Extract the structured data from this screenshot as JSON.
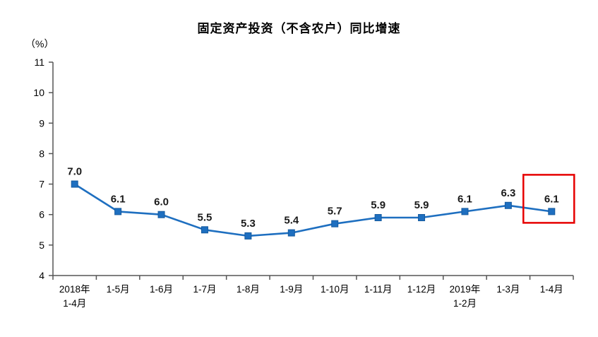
{
  "chart_data": {
    "type": "line",
    "title": "固定资产投资（不含农户）同比增速",
    "ylabel": "（%）",
    "categories": [
      "2018年\n1-4月",
      "1-5月",
      "1-6月",
      "1-7月",
      "1-8月",
      "1-9月",
      "1-10月",
      "1-11月",
      "1-12月",
      "2019年\n1-2月",
      "1-3月",
      "1-4月"
    ],
    "values": [
      7.0,
      6.1,
      6.0,
      5.5,
      5.3,
      5.4,
      5.7,
      5.9,
      5.9,
      6.1,
      6.3,
      6.1
    ],
    "labels": [
      "7.0",
      "6.1",
      "6.0",
      "5.5",
      "5.3",
      "5.4",
      "5.7",
      "5.9",
      "5.9",
      "6.1",
      "6.3",
      "6.1"
    ],
    "ylim": [
      4,
      11
    ],
    "y_ticks": [
      4,
      5,
      6,
      7,
      8,
      9,
      10,
      11
    ],
    "grid": false,
    "legend": false,
    "line_color": "#1e6fc0",
    "marker": "square",
    "label_color": "#1a1a1a",
    "axis_color": "#555555",
    "tick_text_color": "#000000",
    "highlight": {
      "index": 11,
      "color": "#e60000"
    }
  }
}
